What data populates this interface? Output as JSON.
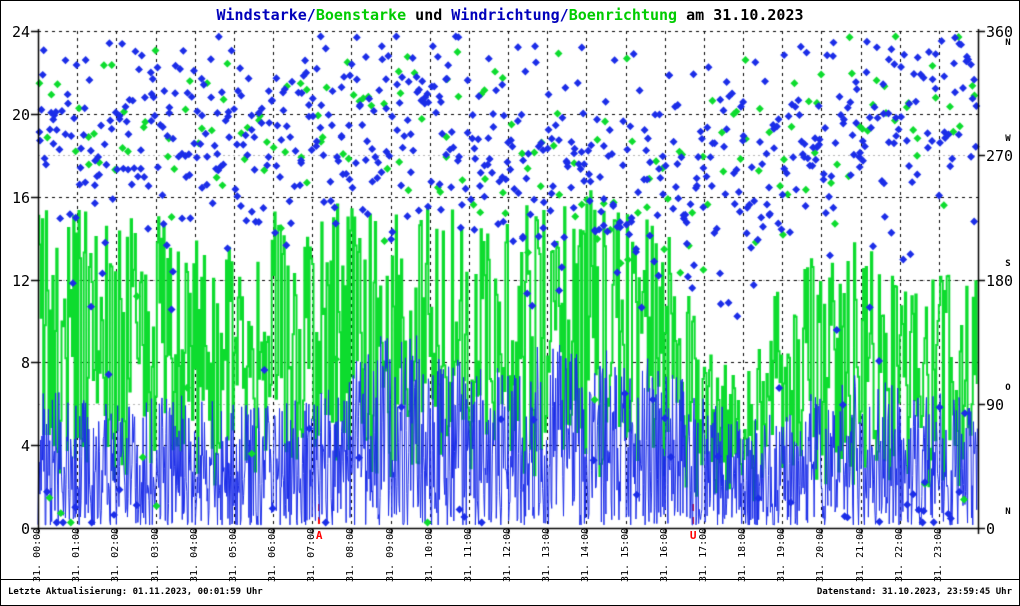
{
  "title": {
    "parts": [
      {
        "text": "Windstarke/",
        "color": "#0000bb"
      },
      {
        "text": "Boenstarke",
        "color": "#00cc00"
      },
      {
        "text": " und ",
        "color": "#000000"
      },
      {
        "text": "Windrichtung/",
        "color": "#0000bb"
      },
      {
        "text": "Boenrichtung",
        "color": "#00cc00"
      },
      {
        "text": " am 31.10.2023",
        "color": "#000000"
      }
    ]
  },
  "footer": {
    "left": "Letzte Aktualisierung: 01.11.2023, 00:01:59 Uhr",
    "right": "Datenstand: 31.10.2023, 23:59:45 Uhr"
  },
  "colors": {
    "wind_blue": "#1b2de8",
    "gust_green": "#0ddc2e",
    "grid_black": "#000000",
    "grid_gray": "#b4b4b4",
    "axis": "#000000",
    "sun_marker": "#ff0000"
  },
  "chart_data": {
    "type": "mixed",
    "title": "Windstarke/Boenstarke und Windrichtung/Boenrichtung am 31.10.2023",
    "grid": true,
    "x_axis": {
      "range_hours": [
        0,
        24
      ],
      "tick_labels": [
        "31. 00:00",
        "31. 01:00",
        "31. 02:00",
        "31. 03:00",
        "31. 04:00",
        "31. 05:00",
        "31. 06:00",
        "31. 07:00",
        "31. 08:00",
        "31. 09:00",
        "31. 10:00",
        "31. 11:00",
        "31. 12:00",
        "31. 13:00",
        "31. 14:00",
        "31. 15:00",
        "31. 16:00",
        "31. 17:00",
        "31. 18:00",
        "31. 19:00",
        "31. 20:00",
        "31. 21:00",
        "31. 22:00",
        "31. 23:00"
      ]
    },
    "y_left": {
      "range": [
        0,
        24
      ],
      "ticks": [
        0,
        4,
        8,
        12,
        16,
        20,
        24
      ]
    },
    "y_right": {
      "range": [
        0,
        360
      ],
      "ticks": [
        0,
        90,
        180,
        270,
        360
      ],
      "cardinals": [
        {
          "deg": 0,
          "letter": "N",
          "pos": "above"
        },
        {
          "deg": 90,
          "letter": "O",
          "pos": "above"
        },
        {
          "deg": 180,
          "letter": "S",
          "pos": "above"
        },
        {
          "deg": 270,
          "letter": "W",
          "pos": "above"
        },
        {
          "deg": 360,
          "letter": "N",
          "pos": "below"
        }
      ]
    },
    "sun_markers": [
      {
        "label": "A",
        "hour": 7.17
      },
      {
        "label": "U",
        "hour": 16.72
      }
    ],
    "seed": 1031,
    "series": [
      {
        "name": "Windstaerke",
        "type": "line",
        "axis": "left",
        "color": "#1b2de8",
        "line_width": 1,
        "points_per_hour": 60,
        "hourly_max_envelope": [
          7,
          6.5,
          6,
          6.5,
          6.5,
          6,
          6,
          6.5,
          8,
          10,
          9,
          8,
          8,
          9,
          9,
          8.5,
          8,
          6.5,
          5.5,
          6,
          7,
          7.5,
          7,
          6.5
        ]
      },
      {
        "name": "Boenstaerke",
        "type": "step",
        "axis": "left",
        "color": "#0ddc2e",
        "line_width": 2,
        "points_per_hour": 30,
        "hourly_max_envelope": [
          16,
          15.5,
          15,
          15.5,
          14,
          13.5,
          15.5,
          15,
          16,
          16.5,
          16,
          15.5,
          15.5,
          16,
          16.5,
          16,
          15,
          9,
          7.5,
          12.5,
          13.5,
          14,
          13.5,
          12.5
        ]
      },
      {
        "name": "Windrichtung",
        "type": "scatter",
        "axis": "right",
        "color": "#1b2de8",
        "marker": "diamond",
        "points_per_hour": 30,
        "spread_deg": 50,
        "outlier_fraction": 0.07,
        "hourly_mean_deg": [
          305,
          300,
          295,
          290,
          285,
          280,
          282,
          288,
          293,
          298,
          290,
          278,
          268,
          260,
          254,
          250,
          248,
          252,
          260,
          270,
          282,
          294,
          305,
          318
        ]
      },
      {
        "name": "Boenrichtung",
        "type": "scatter",
        "axis": "right",
        "color": "#0ddc2e",
        "marker": "diamond",
        "points_per_hour": 8,
        "spread_deg": 45,
        "outlier_fraction": 0.08,
        "hourly_mean_deg": [
          305,
          300,
          295,
          290,
          285,
          280,
          282,
          288,
          293,
          298,
          290,
          278,
          268,
          260,
          254,
          250,
          248,
          252,
          260,
          270,
          282,
          294,
          305,
          318
        ]
      }
    ]
  }
}
